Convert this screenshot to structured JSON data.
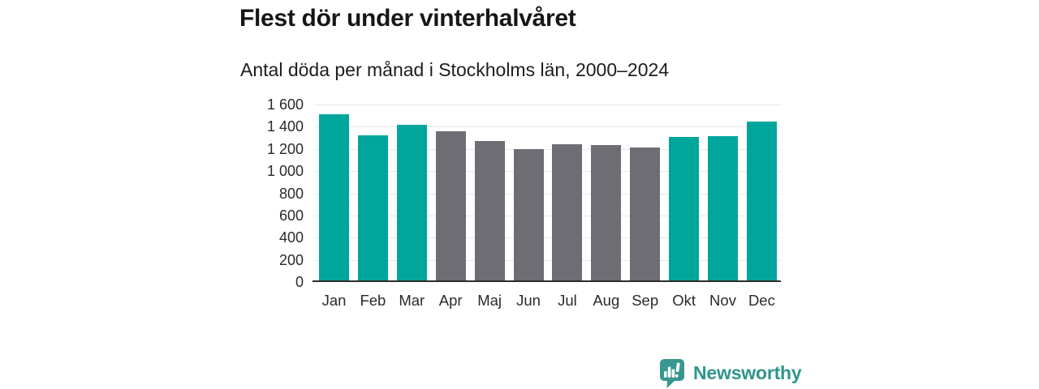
{
  "header": {
    "title": "Flest dör under vinterhalvåret",
    "subtitle": "Antal döda per månad i Stockholms län, 2000–2024"
  },
  "chart_data": {
    "type": "bar",
    "title": "Flest dör under vinterhalvåret",
    "subtitle": "Antal döda per månad i Stockholms län, 2000–2024",
    "categories": [
      "Jan",
      "Feb",
      "Mar",
      "Apr",
      "Maj",
      "Jun",
      "Jul",
      "Aug",
      "Sep",
      "Okt",
      "Nov",
      "Dec"
    ],
    "series": [
      {
        "name": "Antal döda per månad",
        "values": [
          1510,
          1320,
          1420,
          1360,
          1270,
          1200,
          1245,
          1235,
          1215,
          1305,
          1315,
          1450
        ],
        "colors": [
          "#00a69b",
          "#00a69b",
          "#00a69b",
          "#6e6d73",
          "#6e6d73",
          "#6e6d73",
          "#6e6d73",
          "#6e6d73",
          "#6e6d73",
          "#00a69b",
          "#00a69b",
          "#00a69b"
        ]
      }
    ],
    "xlabel": "",
    "ylabel": "",
    "ylim": [
      0,
      1600
    ],
    "ytick_step": 200,
    "ytick_labels": [
      "0",
      "200",
      "400",
      "600",
      "800",
      "1 000",
      "1 200",
      "1 400",
      "1 600"
    ],
    "grid": "horizontal-light",
    "legend": "none"
  },
  "colors": {
    "highlight_teal": "#00a69b",
    "neutral_gray": "#6e6d73",
    "gridline": "#e8e8eb",
    "axis_line": "#2b2b2b",
    "title_text": "#161616",
    "tick_text": "#2a2a2a",
    "brand_teal": "#2f958c",
    "brand_icon_teal": "#36988f"
  },
  "branding": {
    "name": "Newsworthy",
    "icon": "newsworthy-speech-bubble-chart-icon"
  }
}
